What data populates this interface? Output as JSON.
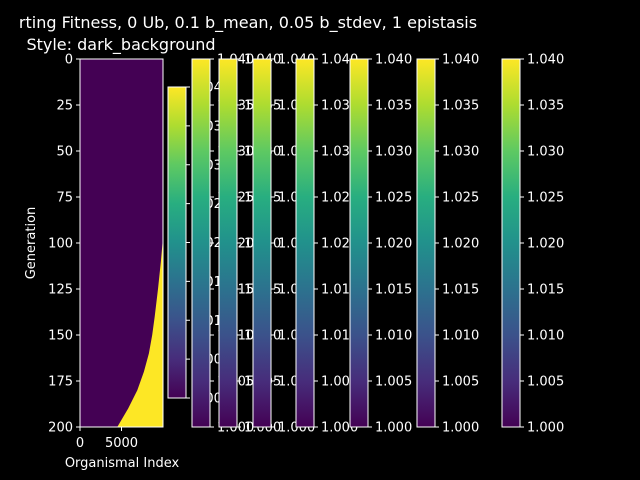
{
  "title_line1": "rting Fitness, 0 Ub, 0.1 b_mean, 0.05 b_stdev, 1 epistasis",
  "title_line2": "Style: dark_background",
  "colors": {
    "background": "#000000",
    "foreground": "#ffffff",
    "low": "#440154",
    "high": "#fde725"
  },
  "chart_data": {
    "type": "heatmap",
    "xlabel": "Organismal Index",
    "ylabel": "Generation",
    "xlim": [
      0,
      10000
    ],
    "ylim": [
      200,
      0
    ],
    "x_ticks": [
      "0",
      "5000"
    ],
    "y_ticks": [
      "0",
      "25",
      "50",
      "75",
      "100",
      "125",
      "150",
      "175",
      "200"
    ],
    "colormap": "viridis",
    "value_range": [
      1.0,
      1.04
    ],
    "boundary": {
      "description_generation_vs_index": "cells to the right of the boundary index take the high value 1.040, cells to the left take 1.000",
      "generation": [
        97,
        110,
        125,
        140,
        150,
        160,
        170,
        180,
        190,
        200
      ],
      "index_start": [
        10000,
        9750,
        9400,
        9000,
        8700,
        8300,
        7700,
        6900,
        5800,
        4500
      ]
    },
    "colorbars": [
      {
        "ticks": [
          "1.000",
          "1.005",
          "1.010",
          "1.015",
          "1.020",
          "1.025",
          "1.030",
          "1.035",
          "1.040"
        ]
      },
      {
        "ticks": [
          "1.000",
          "1.005",
          "1.010",
          "1.015",
          "1.020",
          "1.025",
          "1.030",
          "1.035",
          "1.040"
        ]
      },
      {
        "ticks": [
          "1.000",
          "1.005",
          "1.010",
          "1.015",
          "1.020",
          "1.025",
          "1.030",
          "1.035",
          "1.040"
        ]
      },
      {
        "ticks": [
          "1.000",
          "1.005",
          "1.010",
          "1.015",
          "1.020",
          "1.025",
          "1.030",
          "1.035",
          "1.040"
        ]
      },
      {
        "ticks": [
          "1.000",
          "1.005",
          "1.010",
          "1.015",
          "1.020",
          "1.025",
          "1.030",
          "1.035",
          "1.040"
        ]
      },
      {
        "ticks": [
          "1.000",
          "1.005",
          "1.010",
          "1.015",
          "1.020",
          "1.025",
          "1.030",
          "1.035",
          "1.040"
        ]
      },
      {
        "ticks": [
          "1.000",
          "1.005",
          "1.010",
          "1.015",
          "1.020",
          "1.025",
          "1.030",
          "1.035",
          "1.040"
        ]
      },
      {
        "ticks": [
          "1.000",
          "1.005",
          "1.010",
          "1.015",
          "1.020",
          "1.025",
          "1.030",
          "1.035",
          "1.040"
        ]
      }
    ]
  }
}
